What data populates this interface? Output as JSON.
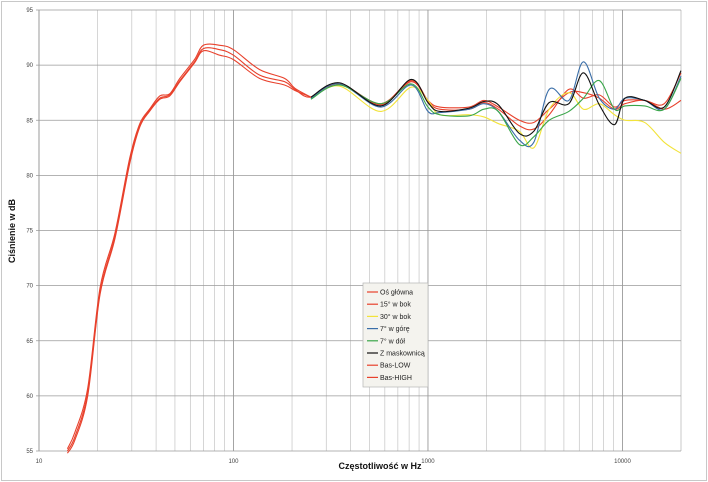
{
  "chart_data": {
    "type": "line",
    "title": "",
    "xlabel": "Częstotliwość w Hz",
    "ylabel": "Ciśnienie w dB",
    "xscale": "log",
    "xlim": [
      10,
      20000
    ],
    "ylim": [
      55,
      95
    ],
    "xticks": [
      10,
      100,
      1000,
      10000
    ],
    "yticks": [
      55,
      60,
      65,
      70,
      75,
      80,
      85,
      90,
      95
    ],
    "grid": true,
    "legend_position": "center",
    "series": [
      {
        "name": "Oś główna",
        "color": "#e8412c",
        "x": [
          14,
          15.3,
          17.8,
          20.6,
          24.6,
          29.3,
          33,
          37,
          41.8,
          47,
          53,
          63,
          70,
          85,
          100,
          136,
          183,
          207,
          250,
          350,
          570,
          820,
          1000,
          1150,
          1630,
          1940,
          2300,
          2950,
          3500,
          4200,
          5300,
          6300,
          7600,
          9100,
          10300,
          13000,
          16400,
          20000
        ],
        "y": [
          55,
          56.3,
          60.3,
          69.4,
          74.5,
          81.3,
          84.5,
          85.9,
          87,
          87.3,
          88.6,
          90.3,
          91.5,
          91.4,
          90.9,
          89.1,
          88.5,
          87.8,
          87.1,
          88.3,
          86.5,
          88.6,
          86.8,
          86.2,
          86.2,
          86.8,
          86.2,
          85,
          84.8,
          86,
          87.5,
          87.5,
          87,
          86,
          86.5,
          86.8,
          86,
          86.8
        ]
      },
      {
        "name": "15° w bok",
        "color": "#e8412c",
        "x": [
          250,
          350,
          570,
          820,
          1000,
          1150,
          1630,
          1940,
          2300,
          2950,
          3500,
          4200,
          5300,
          6300,
          7600,
          9100,
          10300,
          13000,
          16400,
          20000
        ],
        "y": [
          87.1,
          88.3,
          86.4,
          88.5,
          86.7,
          86,
          86,
          86.6,
          86,
          84.5,
          84.2,
          85.5,
          87.8,
          87,
          87.3,
          86.2,
          86.8,
          86.8,
          86.5,
          89.3
        ]
      },
      {
        "name": "30° w bok",
        "color": "#f2e33a",
        "x": [
          250,
          350,
          570,
          820,
          1000,
          1150,
          1630,
          1940,
          2300,
          2950,
          3500,
          4200,
          5300,
          6300,
          7600,
          9100,
          10300,
          13000,
          16400,
          20000
        ],
        "y": [
          87,
          88.1,
          85.8,
          88,
          86.8,
          85.5,
          85.5,
          85.3,
          84.7,
          84,
          82.5,
          86,
          87.5,
          86,
          86.5,
          85.5,
          85,
          84.8,
          83,
          82
        ]
      },
      {
        "name": "7° w górę",
        "color": "#3a6ea8",
        "x": [
          250,
          350,
          570,
          820,
          1000,
          1150,
          1630,
          1940,
          2300,
          2950,
          3500,
          4200,
          5300,
          6300,
          7600,
          9100,
          10300,
          13000,
          16400,
          20000
        ],
        "y": [
          87,
          88.3,
          86.2,
          88.2,
          85.8,
          85.7,
          86,
          86.5,
          85.8,
          83.2,
          83,
          87.8,
          86.8,
          90.3,
          87,
          86,
          87,
          86.8,
          86,
          89
        ]
      },
      {
        "name": "7° w dół",
        "color": "#3aa64a",
        "x": [
          250,
          350,
          570,
          820,
          1000,
          1150,
          1630,
          1940,
          2300,
          2950,
          3500,
          4200,
          5300,
          6300,
          7600,
          9100,
          10300,
          13000,
          16400,
          20000
        ],
        "y": [
          86.9,
          88.2,
          86.5,
          88.3,
          86.2,
          85.5,
          85.4,
          86,
          85.8,
          82.8,
          83.5,
          85,
          85.8,
          87,
          88.6,
          86,
          86.3,
          86.3,
          86,
          88.8
        ]
      },
      {
        "name": "Z maskownicą",
        "color": "#111111",
        "x": [
          250,
          350,
          570,
          820,
          1000,
          1150,
          1630,
          1940,
          2300,
          2950,
          3500,
          4200,
          5300,
          6300,
          7600,
          9100,
          10300,
          13000,
          16400,
          20000
        ],
        "y": [
          87.1,
          88.4,
          86.3,
          88.7,
          86.6,
          85.8,
          86.1,
          86.7,
          86.4,
          83.8,
          84,
          86.6,
          86.5,
          89.3,
          86.4,
          84.6,
          87,
          86.8,
          86.2,
          89.5
        ]
      },
      {
        "name": "Bas-LOW",
        "color": "#e8412c",
        "x": [
          14,
          15.3,
          17.8,
          20.6,
          24.6,
          29.3,
          33,
          37,
          41.8,
          47,
          53,
          63,
          70,
          85,
          100,
          136,
          183,
          207,
          250
        ],
        "y": [
          54.8,
          56,
          60,
          69.2,
          74.3,
          81.1,
          84.4,
          85.8,
          86.9,
          87.2,
          88.5,
          90.2,
          91.3,
          90.9,
          90.5,
          88.8,
          88.2,
          87.7,
          87.1
        ]
      },
      {
        "name": "Bas-HIGH",
        "color": "#e8412c",
        "x": [
          14,
          15.3,
          17.8,
          20.6,
          24.6,
          29.3,
          33,
          37,
          41.8,
          47,
          53,
          63,
          70,
          85,
          100,
          136,
          183,
          207,
          250
        ],
        "y": [
          55.2,
          56.7,
          60.7,
          69.8,
          74.8,
          81.6,
          84.7,
          86,
          87.2,
          87.4,
          88.8,
          90.5,
          91.8,
          91.8,
          91.4,
          89.6,
          88.8,
          87.9,
          87.1
        ]
      }
    ]
  }
}
